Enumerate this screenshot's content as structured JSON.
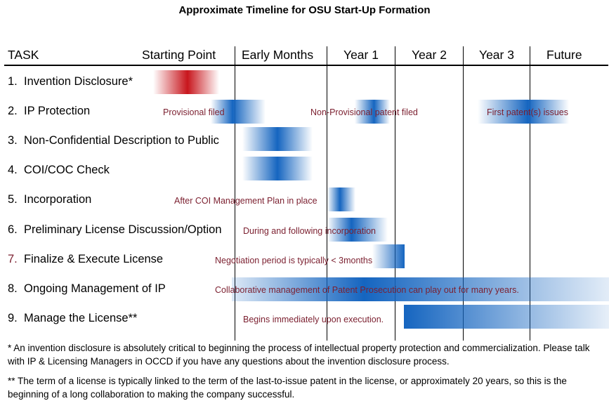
{
  "title": "Approximate Timeline for OSU Start-Up Formation",
  "header": {
    "task": "TASK",
    "columns": [
      "Starting Point",
      "Early Months",
      "Year 1",
      "Year 2",
      "Year 3",
      "Future"
    ]
  },
  "tasks": [
    {
      "num": "1.",
      "label": "Invention Disclosure*"
    },
    {
      "num": "2.",
      "label": "IP Protection"
    },
    {
      "num": "3.",
      "label": "Non-Confidential Description to Public"
    },
    {
      "num": "4.",
      "label": "COI/COC Check"
    },
    {
      "num": "5.",
      "label": "Incorporation"
    },
    {
      "num": "6.",
      "label": "Preliminary License Discussion/Option"
    },
    {
      "num": "7.",
      "label": "Finalize & Execute License"
    },
    {
      "num": "8.",
      "label": "Ongoing Management of IP"
    },
    {
      "num": "9.",
      "label": "Manage the License**"
    }
  ],
  "annotations": {
    "provisional": "Provisional filed",
    "nonprovisional": "Non-Provisional patent filed",
    "first_patent": "First patent(s) issues",
    "incorporation": "After COI Management Plan in place",
    "preliminary": "During and following incorporation",
    "finalize": "Negotiation period is typically < 3months",
    "ongoing": "Collaborative management of Patent Prosecution can play out for many years.",
    "manage": "Begins immediately upon execution."
  },
  "colors": {
    "red_bar": "#c8161d",
    "blue_bar": "#1565c0",
    "annotation_text": "#7b1f2f"
  },
  "notes": {
    "note1": "* An invention disclosure is absolutely critical to beginning the process of intellectual property protection and commercialization. Please talk with IP & Licensing Managers in OCCD if you have any questions about the invention disclosure process.",
    "note2": "** The term of a license is typically linked to the term of the last-to-issue patent in the license, or approximately 20 years, so this is the beginning of a long collaboration to making the company successful."
  }
}
